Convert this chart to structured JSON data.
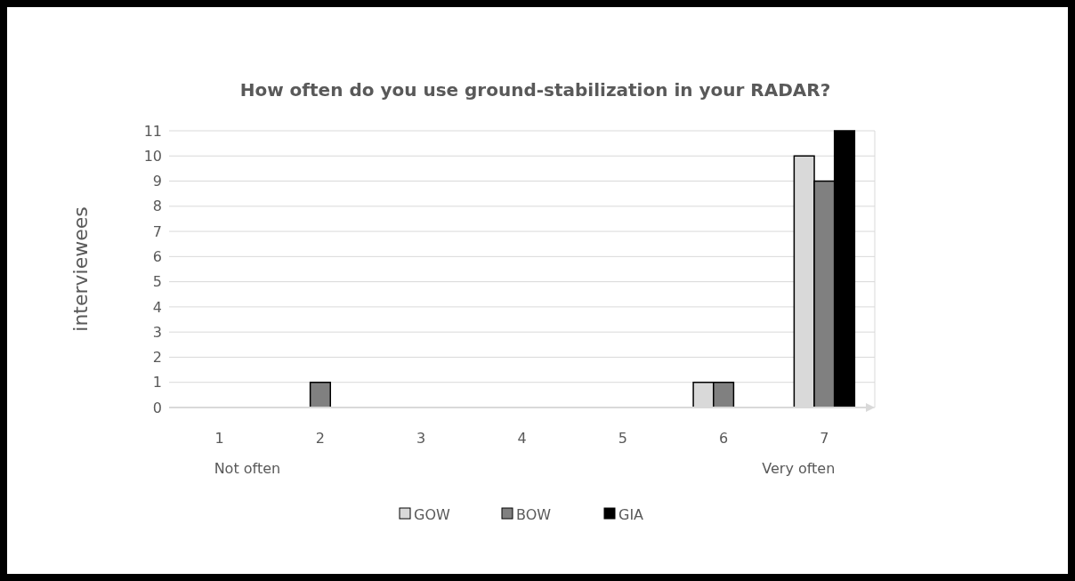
{
  "chart_data": {
    "type": "bar",
    "title": "How often do you use ground-stabilization in your RADAR?",
    "ylabel": "interviewees",
    "categories": [
      "1",
      "2",
      "3",
      "4",
      "5",
      "6",
      "7"
    ],
    "series": [
      {
        "name": "GOW",
        "color": "#d9d9d9",
        "values": [
          0,
          0,
          0,
          0,
          0,
          1,
          10
        ]
      },
      {
        "name": "BOW",
        "color": "#808080",
        "values": [
          0,
          1,
          0,
          0,
          0,
          1,
          9
        ]
      },
      {
        "name": "GIA",
        "color": "#000000",
        "values": [
          0,
          0,
          0,
          0,
          0,
          0,
          11
        ]
      }
    ],
    "annotations": [
      "Not often",
      "Very often"
    ],
    "ylim": [
      0,
      11
    ],
    "yticks": [
      0,
      1,
      2,
      3,
      4,
      5,
      6,
      7,
      8,
      9,
      10,
      11
    ],
    "grid": "y",
    "legend": "bottom"
  }
}
